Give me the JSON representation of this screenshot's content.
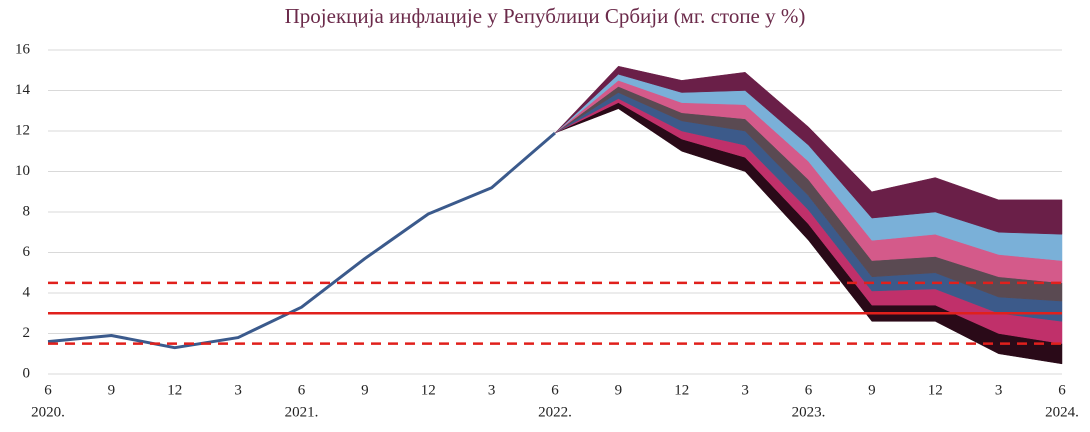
{
  "chart_data": {
    "type": "fan",
    "title": "Пројекција инфлације у Републици Србији (мг. стопе у %)",
    "categories": [
      "6",
      "9",
      "12",
      "3",
      "6",
      "9",
      "12",
      "3",
      "6",
      "9",
      "12",
      "3",
      "6",
      "9",
      "12",
      "3",
      "6"
    ],
    "year_labels": [
      "2020.",
      null,
      null,
      null,
      "2021.",
      null,
      null,
      null,
      "2022.",
      null,
      null,
      null,
      "2023.",
      null,
      null,
      null,
      "2024."
    ],
    "ylim": [
      0,
      16
    ],
    "yticks": [
      0,
      2,
      4,
      6,
      8,
      10,
      12,
      14,
      16
    ],
    "grid": true,
    "series": [
      {
        "color": "#3b5a8c",
        "values": [
          1.6,
          1.9,
          1.3,
          1.8,
          3.3,
          5.7,
          7.9,
          9.2,
          11.9,
          null,
          null,
          null,
          null,
          null,
          null,
          null,
          null
        ]
      }
    ],
    "fan": {
      "bounds": [
        [
          null,
          null,
          null,
          null,
          null,
          null,
          null,
          null,
          11.9,
          13.1,
          11.0,
          10.0,
          6.6,
          2.6,
          2.6,
          1.0,
          0.5
        ],
        [
          null,
          null,
          null,
          null,
          null,
          null,
          null,
          null,
          11.9,
          13.4,
          11.6,
          10.7,
          7.4,
          3.4,
          3.4,
          2.0,
          1.5
        ],
        [
          null,
          null,
          null,
          null,
          null,
          null,
          null,
          null,
          11.9,
          13.6,
          12.0,
          11.3,
          8.1,
          4.1,
          4.2,
          3.0,
          2.6
        ],
        [
          null,
          null,
          null,
          null,
          null,
          null,
          null,
          null,
          11.9,
          13.9,
          12.5,
          12.0,
          8.8,
          4.8,
          5.0,
          3.8,
          3.6
        ],
        [
          null,
          null,
          null,
          null,
          null,
          null,
          null,
          null,
          11.9,
          14.2,
          12.9,
          12.6,
          9.6,
          5.6,
          5.8,
          4.8,
          4.5
        ],
        [
          null,
          null,
          null,
          null,
          null,
          null,
          null,
          null,
          11.9,
          14.5,
          13.4,
          13.3,
          10.5,
          6.6,
          6.9,
          5.9,
          5.6
        ],
        [
          null,
          null,
          null,
          null,
          null,
          null,
          null,
          null,
          11.9,
          14.8,
          13.9,
          14.0,
          11.3,
          7.7,
          8.0,
          7.0,
          6.9
        ],
        [
          null,
          null,
          null,
          null,
          null,
          null,
          null,
          null,
          11.9,
          15.2,
          14.5,
          14.9,
          12.2,
          9.0,
          9.7,
          8.6,
          8.6
        ]
      ],
      "colors": [
        "#2a0a18",
        "#c0306a",
        "#3c5a8a",
        "#5a4a52",
        "#d45a8a",
        "#7ab0d8",
        "#6a1f48"
      ]
    },
    "reference_lines": [
      {
        "value": 3,
        "style": "solid",
        "color": "#e0201c"
      },
      {
        "value": 1.5,
        "style": "dashed",
        "color": "#e0201c"
      },
      {
        "value": 4.5,
        "style": "dashed",
        "color": "#e0201c"
      }
    ]
  }
}
